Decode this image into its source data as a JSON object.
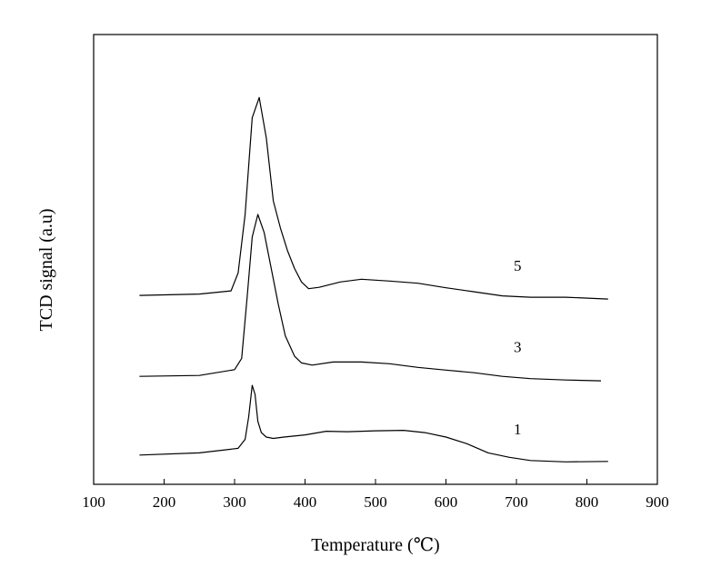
{
  "chart_data": {
    "type": "line",
    "title": "",
    "xlabel": "Temperature (℃)",
    "ylabel": "TCD signal (a.u)",
    "xlim": [
      100,
      900
    ],
    "ylim": [
      0,
      100
    ],
    "xticks": [
      "100",
      "200",
      "300",
      "400",
      "500",
      "600",
      "700",
      "800",
      "900"
    ],
    "y_tick_labels": false,
    "grid": false,
    "legend": "none",
    "line_color": "#000000",
    "series": [
      {
        "name": "5",
        "x": [
          165,
          250,
          295,
          305,
          315,
          325,
          335,
          345,
          355,
          365,
          375,
          385,
          395,
          405,
          420,
          450,
          480,
          520,
          560,
          600,
          640,
          680,
          720,
          770,
          830
        ],
        "y": [
          42.0,
          42.3,
          43.0,
          47.0,
          60.0,
          81.5,
          86.0,
          77.0,
          63.0,
          57.0,
          52.0,
          48.0,
          45.0,
          43.5,
          43.8,
          45.0,
          45.6,
          45.2,
          44.7,
          43.7,
          42.8,
          41.9,
          41.6,
          41.6,
          41.2
        ]
      },
      {
        "name": "3",
        "x": [
          165,
          250,
          300,
          310,
          318,
          325,
          333,
          342,
          352,
          362,
          372,
          385,
          395,
          410,
          440,
          480,
          520,
          560,
          600,
          640,
          680,
          720,
          770,
          820
        ],
        "y": [
          24.0,
          24.2,
          25.5,
          28.0,
          42.0,
          55.0,
          60.0,
          56.0,
          48.0,
          40.0,
          33.0,
          28.5,
          27.0,
          26.5,
          27.2,
          27.2,
          26.8,
          26.0,
          25.4,
          24.8,
          24.0,
          23.5,
          23.2,
          23.0
        ]
      },
      {
        "name": "1",
        "x": [
          165,
          250,
          305,
          315,
          320,
          325,
          329,
          333,
          338,
          345,
          355,
          370,
          400,
          430,
          460,
          500,
          540,
          570,
          600,
          630,
          660,
          690,
          720,
          770,
          830
        ],
        "y": [
          6.5,
          7.0,
          8.0,
          10.0,
          15.0,
          22.0,
          20.0,
          14.0,
          11.5,
          10.5,
          10.2,
          10.5,
          11.0,
          11.8,
          11.7,
          11.9,
          12.0,
          11.5,
          10.5,
          9.0,
          7.0,
          6.0,
          5.3,
          5.0,
          5.1
        ]
      }
    ]
  }
}
